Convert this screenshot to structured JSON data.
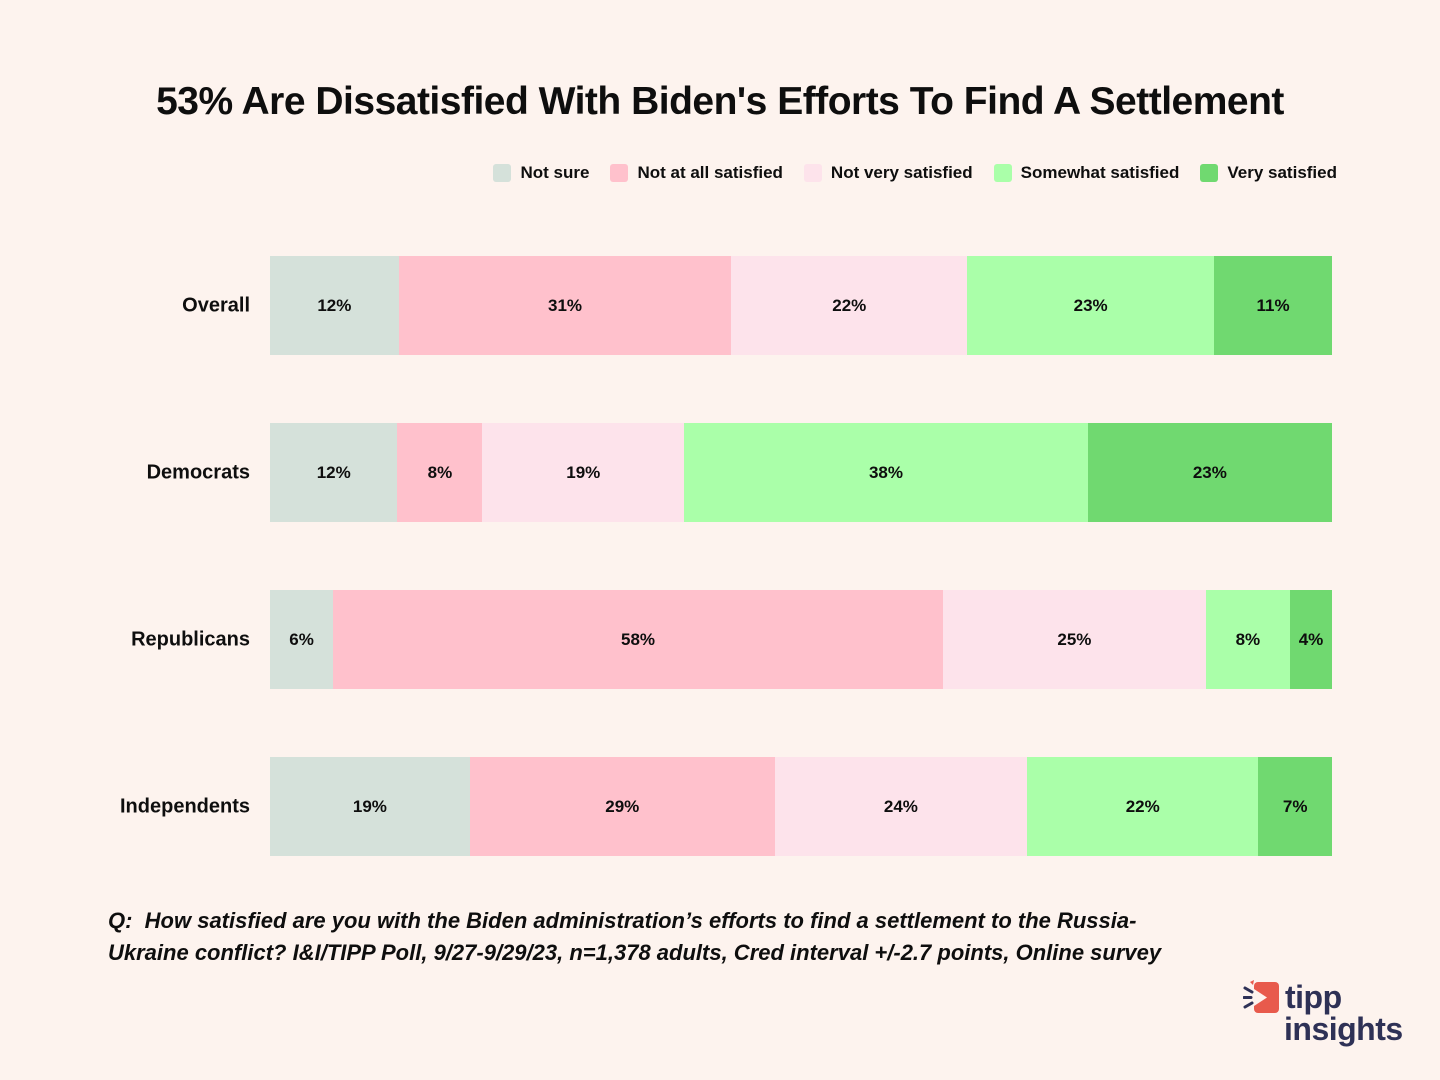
{
  "page": {
    "background": "#fdf3ee"
  },
  "title": "53% Are Dissatisfied With Biden's Efforts To Find A Settlement",
  "chart_data": {
    "type": "bar",
    "orientation": "horizontal",
    "stacked": true,
    "normalized_percent": true,
    "title": "53% Are Dissatisfied With Biden's Efforts To Find A Settlement",
    "categories": [
      "Overall",
      "Democrats",
      "Republicans",
      "Independents"
    ],
    "series": [
      {
        "name": "Not sure",
        "color": "#d5e1da",
        "values": [
          12,
          12,
          6,
          19
        ]
      },
      {
        "name": "Not at all satisfied",
        "color": "#ffc1cc",
        "values": [
          31,
          8,
          58,
          29
        ]
      },
      {
        "name": "Not very satisfied",
        "color": "#fde3eb",
        "values": [
          22,
          19,
          25,
          24
        ]
      },
      {
        "name": "Somewhat satisfied",
        "color": "#aaffa9",
        "values": [
          23,
          38,
          8,
          22
        ]
      },
      {
        "name": "Very satisfied",
        "color": "#70d970",
        "values": [
          11,
          23,
          4,
          7
        ]
      }
    ],
    "value_suffix": "%",
    "legend_position": "top-right",
    "grid": false
  },
  "footer": {
    "line1": "Q:  How satisfied are you with the Biden administration’s efforts to find a settlement to the Russia-",
    "line2": "Ukraine conflict? I&I/TIPP Poll, 9/27-9/29/23, n=1,378 adults, Cred interval +/-2.7 points, Online survey"
  },
  "logo": {
    "word1": "tipp",
    "word2": "insights",
    "navy": "#2e3156",
    "red": "#e85a4c"
  }
}
